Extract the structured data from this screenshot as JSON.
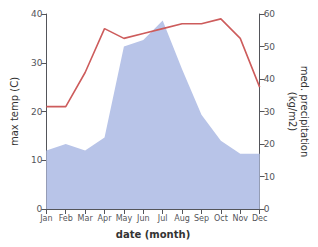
{
  "chart_data": {
    "type": "line",
    "xlabel": "date (month)",
    "ylabel": "max temp (C)",
    "y2label": "med. precipitation\n(kg/m2)",
    "categories": [
      "Jan",
      "Feb",
      "Mar",
      "Apr",
      "May",
      "Jun",
      "Jul",
      "Aug",
      "Sep",
      "Oct",
      "Nov",
      "Dec"
    ],
    "series": [
      {
        "type": "area",
        "axis": "y2",
        "color": "#b8c4e8",
        "values": [
          18,
          20,
          18,
          22,
          50,
          52,
          58,
          43,
          29,
          21,
          17,
          17
        ]
      },
      {
        "type": "line",
        "color": "#cd5c5c",
        "values": [
          21,
          21,
          28,
          37,
          35,
          36,
          37,
          38,
          38,
          39,
          35,
          25
        ]
      }
    ],
    "ylim": [
      0,
      40
    ],
    "yticks": [
      0,
      10,
      20,
      30,
      40
    ],
    "y2lim": [
      0,
      60
    ],
    "y2ticks": [
      0,
      10,
      20,
      30,
      40,
      50,
      60
    ],
    "grid": false
  }
}
